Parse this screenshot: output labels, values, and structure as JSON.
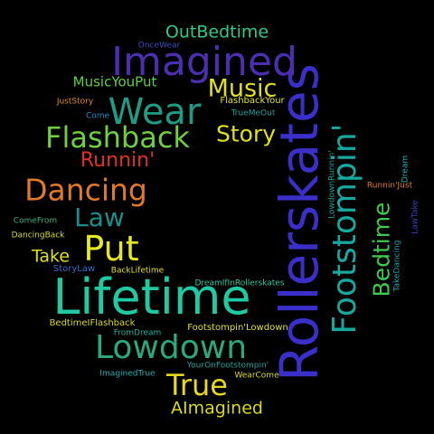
{
  "words": [
    {
      "id": "rollerskates",
      "text": "Rollerskates",
      "color": "#3b2fc9"
    },
    {
      "id": "footstompin",
      "text": "Footstompin'",
      "color": "#17a8a0"
    },
    {
      "id": "lifetime",
      "text": "Lifetime",
      "color": "#1fc9a2"
    },
    {
      "id": "imagined",
      "text": "Imagined",
      "color": "#4b2fb0"
    },
    {
      "id": "lowdown",
      "text": "Lowdown",
      "color": "#2ba87c"
    },
    {
      "id": "wear",
      "text": "Wear",
      "color": "#1f9c86"
    },
    {
      "id": "flashback",
      "text": "Flashback",
      "color": "#6fcf3f"
    },
    {
      "id": "dancing",
      "text": "Dancing",
      "color": "#e07a2a"
    },
    {
      "id": "put",
      "text": "Put",
      "color": "#e8e81f"
    },
    {
      "id": "true",
      "text": "True",
      "color": "#e8d81f"
    },
    {
      "id": "bedtime",
      "text": "Bedtime",
      "color": "#3fc94f"
    },
    {
      "id": "music",
      "text": "Music",
      "color": "#e0e01f"
    },
    {
      "id": "story",
      "text": "Story",
      "color": "#e0e01f"
    },
    {
      "id": "law",
      "text": "Law",
      "color": "#1f8c8c"
    },
    {
      "id": "runnin",
      "text": "Runnin'",
      "color": "#e03020"
    },
    {
      "id": "outbedtime",
      "text": "OutBedtime",
      "color": "#2fc98a"
    },
    {
      "id": "aimagined",
      "text": "AImagined",
      "color": "#d9d91f"
    },
    {
      "id": "take",
      "text": "Take",
      "color": "#e0e01f"
    },
    {
      "id": "musicyouput",
      "text": "MusicYouPut",
      "color": "#5fcf3f"
    },
    {
      "id": "oncewear",
      "text": "OnceWear",
      "color": "#3a4fc0"
    },
    {
      "id": "juststory",
      "text": "JustStory",
      "color": "#e08a2a"
    },
    {
      "id": "come",
      "text": "Come",
      "color": "#1f8cc9"
    },
    {
      "id": "flashbackyour",
      "text": "FlashbackYour",
      "color": "#e0e01f"
    },
    {
      "id": "truemeout",
      "text": "TrueMeOut",
      "color": "#1fa0a0"
    },
    {
      "id": "comefrom",
      "text": "ComeFrom",
      "color": "#2fb07a"
    },
    {
      "id": "dancingback",
      "text": "DancingBack",
      "color": "#d9d91f"
    },
    {
      "id": "storylaw",
      "text": "StoryLaw",
      "color": "#2f6fc9"
    },
    {
      "id": "backlifetime",
      "text": "BackLifetime",
      "color": "#e0e01f"
    },
    {
      "id": "dreamifinrollerskates",
      "text": "DreamIfInRollerskates",
      "color": "#2fc9a0"
    },
    {
      "id": "bedtimeiflashback",
      "text": "BedtimeIFlashback",
      "color": "#d9d91f"
    },
    {
      "id": "fromdream",
      "text": "FromDream",
      "color": "#1fb0a0"
    },
    {
      "id": "footstompinlowdown",
      "text": "Footstompin'Lowdown",
      "color": "#e0e01f"
    },
    {
      "id": "youronfootstompin",
      "text": "YourOnFootstompin'",
      "color": "#1fa0a0"
    },
    {
      "id": "wearcome",
      "text": "WearCome",
      "color": "#d9d91f"
    },
    {
      "id": "imaginedtrue",
      "text": "ImaginedTrue",
      "color": "#1fb0b0"
    },
    {
      "id": "runninjust",
      "text": "Runnin'Just",
      "color": "#e07a2a"
    },
    {
      "id": "lowdownrunnin",
      "text": "LowdownRunnin'",
      "color": "#1fa0a0"
    },
    {
      "id": "dream",
      "text": "Dream",
      "color": "#1fb0b0"
    },
    {
      "id": "lawtake",
      "text": "LawTake",
      "color": "#3a3fc0"
    },
    {
      "id": "takedancing",
      "text": "TakeDancing",
      "color": "#1fa0b0"
    }
  ]
}
